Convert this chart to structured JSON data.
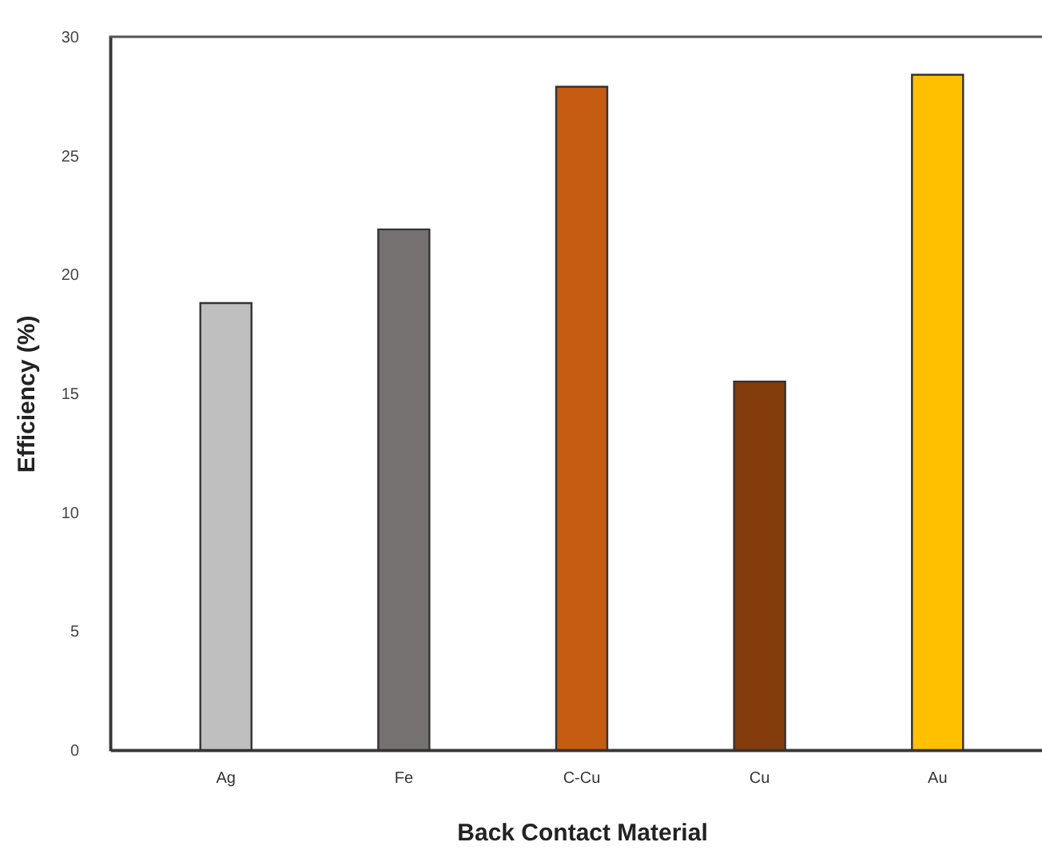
{
  "chart_data": {
    "type": "bar",
    "xlabel": "Back Contact Material",
    "ylabel": "Efficiency (%)",
    "categories": [
      "Ag",
      "Fe",
      "C-Cu",
      "Cu",
      "Au"
    ],
    "values": [
      18.8,
      21.9,
      27.9,
      15.5,
      28.4
    ],
    "colors": [
      "#bfbfbf",
      "#767171",
      "#c55a11",
      "#843c0c",
      "#ffc000"
    ],
    "ylim": [
      0,
      30
    ],
    "yticks": [
      0,
      5,
      10,
      15,
      20,
      25,
      30
    ],
    "grid": false,
    "legend": false
  }
}
